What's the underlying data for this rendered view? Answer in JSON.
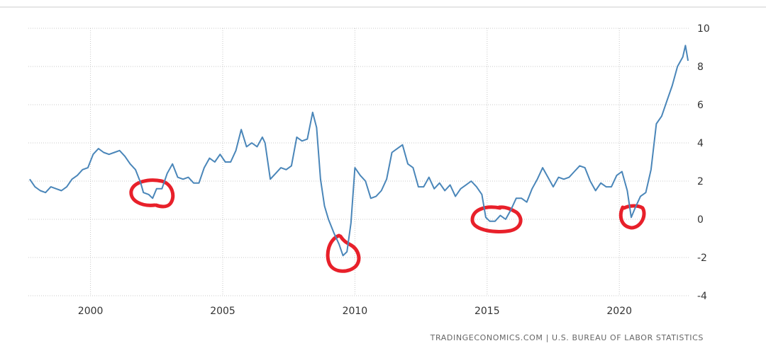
{
  "attribution": "TRADINGECONOMICS.COM | U.S. BUREAU OF LABOR STATISTICS",
  "colors": {
    "line": "#4a86b9",
    "annotation": "#e8202a",
    "grid": "#c8c8c8"
  },
  "chart_data": {
    "type": "line",
    "title": "",
    "xlabel": "",
    "ylabel": "",
    "xlim": [
      1997.65,
      2022.65
    ],
    "ylim": [
      -4,
      10
    ],
    "x_ticks": [
      "2000",
      "2005",
      "2010",
      "2015",
      "2020"
    ],
    "y_ticks": [
      "10",
      "8",
      "6",
      "4",
      "2",
      "0",
      "-2",
      "-4"
    ],
    "grid": true,
    "legend": "none",
    "y_axis_side": "right",
    "series": [
      {
        "x": [
          1997.7,
          1997.9,
          1998.1,
          1998.3,
          1998.5,
          1998.7,
          1998.9,
          1999.1,
          1999.3,
          1999.5,
          1999.7,
          1999.9,
          2000.1,
          2000.3,
          2000.5,
          2000.7,
          2000.9,
          2001.1,
          2001.3,
          2001.5,
          2001.7,
          2001.9,
          2002.0,
          2002.2,
          2002.35,
          2002.5,
          2002.7,
          2002.9,
          2003.1,
          2003.3,
          2003.5,
          2003.7,
          2003.9,
          2004.1,
          2004.3,
          2004.5,
          2004.7,
          2004.9,
          2005.1,
          2005.3,
          2005.5,
          2005.7,
          2005.9,
          2006.1,
          2006.3,
          2006.5,
          2006.6,
          2006.8,
          2007.0,
          2007.2,
          2007.4,
          2007.6,
          2007.8,
          2008.0,
          2008.2,
          2008.4,
          2008.55,
          2008.7,
          2008.85,
          2009.0,
          2009.2,
          2009.4,
          2009.55,
          2009.7,
          2009.85,
          2010.0,
          2010.2,
          2010.4,
          2010.6,
          2010.8,
          2011.0,
          2011.2,
          2011.4,
          2011.6,
          2011.8,
          2012.0,
          2012.2,
          2012.4,
          2012.6,
          2012.8,
          2013.0,
          2013.2,
          2013.4,
          2013.6,
          2013.8,
          2014.0,
          2014.2,
          2014.4,
          2014.6,
          2014.8,
          2014.95,
          2015.1,
          2015.3,
          2015.5,
          2015.7,
          2015.9,
          2016.1,
          2016.3,
          2016.5,
          2016.7,
          2016.9,
          2017.1,
          2017.3,
          2017.5,
          2017.7,
          2017.9,
          2018.1,
          2018.3,
          2018.5,
          2018.7,
          2018.9,
          2019.1,
          2019.3,
          2019.5,
          2019.7,
          2019.9,
          2020.1,
          2020.3,
          2020.45,
          2020.6,
          2020.8,
          2021.0,
          2021.2,
          2021.4,
          2021.6,
          2021.8,
          2022.0,
          2022.2,
          2022.4,
          2022.5,
          2022.6
        ],
        "y": [
          2.1,
          1.7,
          1.5,
          1.4,
          1.7,
          1.6,
          1.5,
          1.7,
          2.1,
          2.3,
          2.6,
          2.7,
          3.4,
          3.7,
          3.5,
          3.4,
          3.5,
          3.6,
          3.3,
          2.9,
          2.6,
          1.9,
          1.4,
          1.3,
          1.1,
          1.6,
          1.6,
          2.4,
          2.9,
          2.2,
          2.1,
          2.2,
          1.9,
          1.9,
          2.7,
          3.2,
          3.0,
          3.4,
          3.0,
          3.0,
          3.6,
          4.7,
          3.8,
          4.0,
          3.8,
          4.3,
          4.0,
          2.1,
          2.4,
          2.7,
          2.6,
          2.8,
          4.3,
          4.1,
          4.2,
          5.6,
          4.8,
          2.1,
          0.7,
          0.0,
          -0.7,
          -1.3,
          -1.9,
          -1.7,
          -0.2,
          2.7,
          2.3,
          2.0,
          1.1,
          1.2,
          1.5,
          2.1,
          3.5,
          3.7,
          3.9,
          2.9,
          2.7,
          1.7,
          1.7,
          2.2,
          1.6,
          1.9,
          1.5,
          1.8,
          1.2,
          1.6,
          1.8,
          2.0,
          1.7,
          1.3,
          0.1,
          -0.1,
          -0.1,
          0.2,
          0.0,
          0.5,
          1.1,
          1.1,
          0.9,
          1.6,
          2.1,
          2.7,
          2.2,
          1.7,
          2.2,
          2.1,
          2.2,
          2.5,
          2.8,
          2.7,
          2.0,
          1.5,
          1.9,
          1.7,
          1.7,
          2.3,
          2.5,
          1.5,
          0.1,
          0.6,
          1.2,
          1.4,
          2.6,
          5.0,
          5.4,
          6.2,
          7.0,
          8.0,
          8.5,
          9.1,
          8.3
        ]
      }
    ]
  }
}
